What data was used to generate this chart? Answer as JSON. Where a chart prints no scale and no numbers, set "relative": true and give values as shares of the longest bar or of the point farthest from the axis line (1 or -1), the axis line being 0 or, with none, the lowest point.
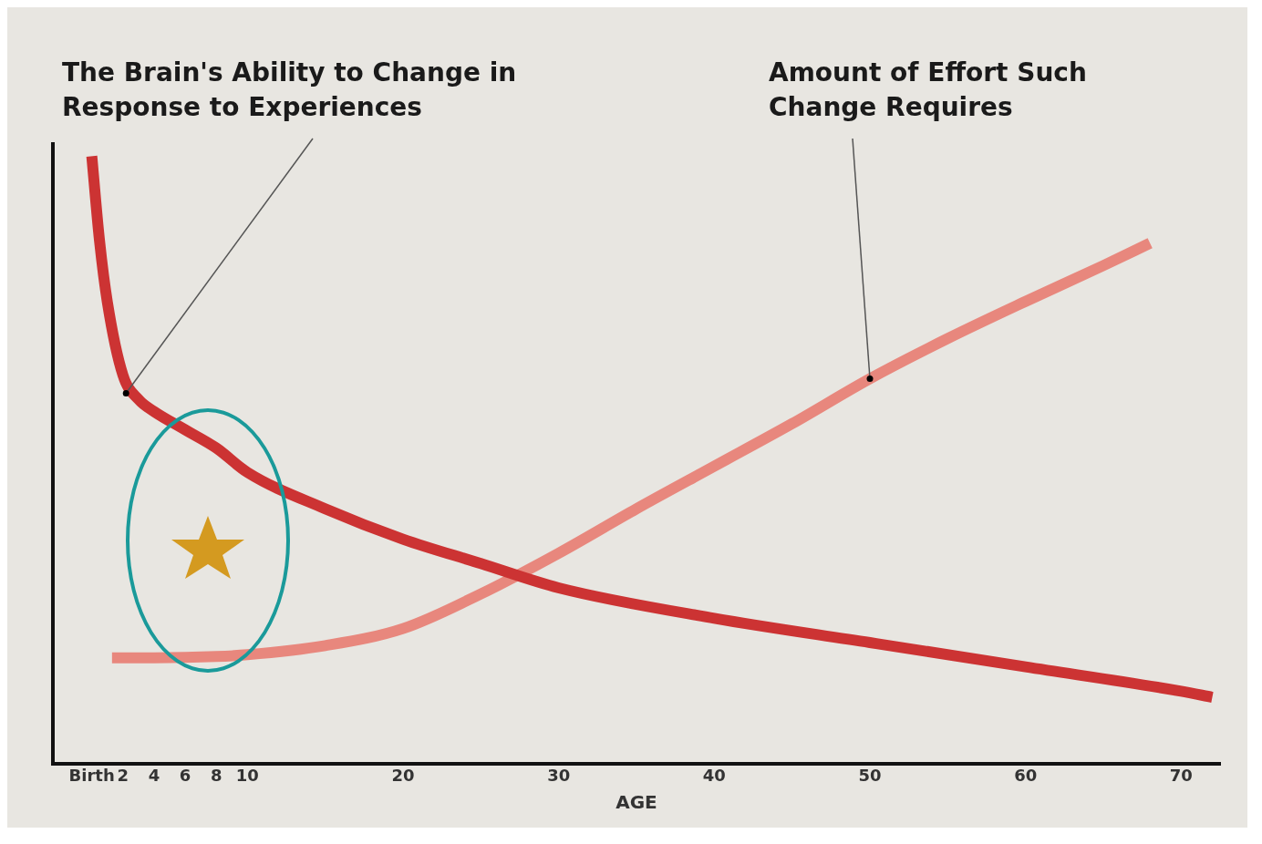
{
  "chart_data": {
    "type": "line",
    "relative": true,
    "xlabel": "AGE",
    "xlim": [
      -2.5,
      72.5
    ],
    "xticks": [
      {
        "value": 0,
        "label": "Birth"
      },
      2,
      4,
      6,
      8,
      10,
      20,
      30,
      40,
      50,
      60,
      70
    ],
    "series": [
      {
        "color": "#cc3333",
        "x": [
          0,
          0.5,
          1,
          2,
          3,
          4,
          6,
          8,
          10,
          15,
          20,
          25,
          30,
          40,
          50,
          60,
          70,
          72
        ],
        "values": [
          1.0,
          0.86,
          0.76,
          0.64,
          0.6,
          0.58,
          0.55,
          0.52,
          0.48,
          0.42,
          0.37,
          0.33,
          0.29,
          0.24,
          0.2,
          0.16,
          0.12,
          0.11
        ]
      },
      {
        "color": "#e8877d",
        "x": [
          1.3,
          4,
          8,
          10,
          15,
          20,
          25,
          30,
          35,
          40,
          45,
          50,
          55,
          60,
          65,
          68
        ],
        "values": [
          0.175,
          0.175,
          0.177,
          0.18,
          0.195,
          0.223,
          0.28,
          0.347,
          0.42,
          0.49,
          0.56,
          0.634,
          0.7,
          0.761,
          0.82,
          0.857
        ]
      }
    ],
    "annotations": [
      {
        "text": "The Brain's Ability to Change in Response to Experiences",
        "x": 2.2,
        "y": 0.61
      },
      {
        "text": "Amount of Effort Such Change Requires",
        "x": 50,
        "y": 0.634
      }
    ],
    "grid": false,
    "legend": false,
    "line_style": "solid",
    "marker": "none"
  }
}
